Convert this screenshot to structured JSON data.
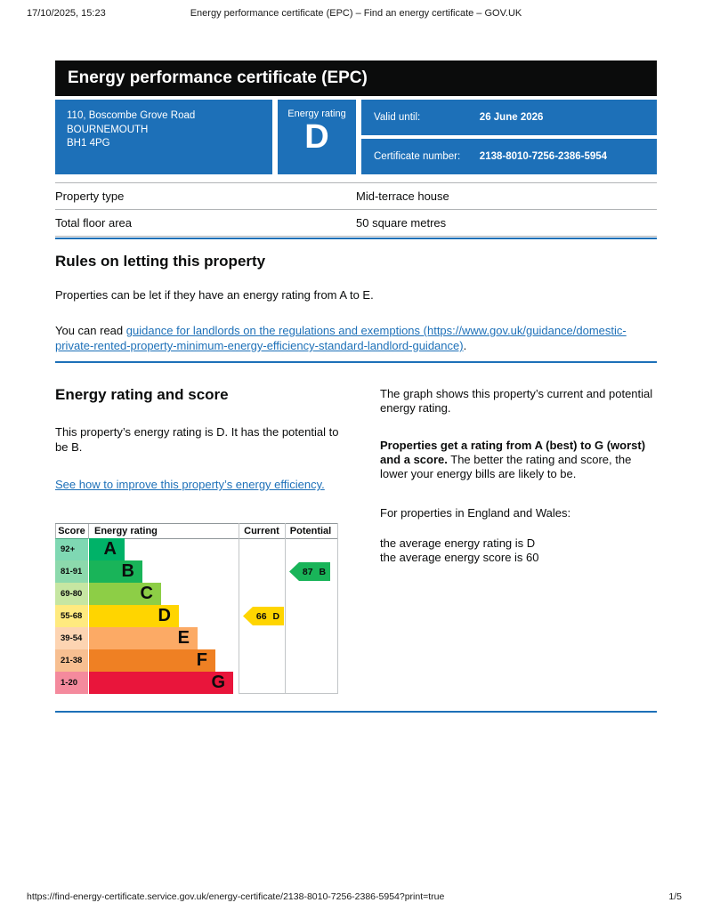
{
  "meta": {
    "datetime": "17/10/2025, 15:23",
    "doc_title": "Energy performance certificate (EPC) – Find an energy certificate – GOV.UK",
    "footer_url": "https://find-energy-certificate.service.gov.uk/energy-certificate/2138-8010-7256-2386-5954?print=true",
    "page_indicator": "1/5"
  },
  "banner": {
    "title": "Energy performance certificate (EPC)"
  },
  "summary": {
    "address_lines": [
      "110, Boscombe Grove Road",
      "BOURNEMOUTH",
      "BH1 4PG"
    ],
    "energy_rating_label": "Energy rating",
    "energy_rating": "D",
    "valid_until_label": "Valid until:",
    "valid_until": "26 June 2026",
    "certificate_number_label": "Certificate number:",
    "certificate_number": "2138-8010-7256-2386-5954"
  },
  "property_table": {
    "rows": [
      {
        "label": "Property type",
        "value": "Mid-terrace house"
      },
      {
        "label": "Total floor area",
        "value": "50 square metres"
      }
    ]
  },
  "letting": {
    "heading": "Rules on letting this property",
    "paragraph": "Properties can be let if they have an energy rating from A to E.",
    "link_prefix": "You can read ",
    "link_text": "guidance for landlords on the regulations and exemptions (https://www.gov.uk/guidance/domestic-private-rented-property-minimum-energy-efficiency-standard-landlord-guidance)",
    "link_suffix": "."
  },
  "rating_section": {
    "heading": "Energy rating and score",
    "paragraph": "This property’s energy rating is D. It has the potential to be B.",
    "link_text": "See how to improve this property’s energy efficiency.",
    "right": {
      "para1": "The graph shows this property’s current and potential energy rating.",
      "para2_bold": "Properties get a rating from A (best) to G (worst) and a score.",
      "para2_rest": " The better the rating and score, the lower your energy bills are likely to be.",
      "para3": "For properties in England and Wales:",
      "line1": "the average energy rating is D",
      "line2": "the average energy score is 60"
    }
  },
  "chart_data": {
    "type": "bar",
    "title": "Energy rating and score",
    "columns": [
      "Score",
      "Energy rating",
      "Current",
      "Potential"
    ],
    "bands": [
      {
        "score_range": "92+",
        "letter": "A",
        "color": "#00b268"
      },
      {
        "score_range": "81-91",
        "letter": "B",
        "color": "#19b459"
      },
      {
        "score_range": "69-80",
        "letter": "C",
        "color": "#8dce46"
      },
      {
        "score_range": "55-68",
        "letter": "D",
        "color": "#ffd500"
      },
      {
        "score_range": "39-54",
        "letter": "E",
        "color": "#fcaa65"
      },
      {
        "score_range": "21-38",
        "letter": "F",
        "color": "#ef8023"
      },
      {
        "score_range": "1-20",
        "letter": "G",
        "color": "#e9153b"
      }
    ],
    "current": {
      "score": "66",
      "band": "D",
      "color": "#ffd500"
    },
    "potential": {
      "score": "87",
      "band": "B",
      "color": "#19b459"
    },
    "legend_position": "top-columns",
    "grid": false
  }
}
